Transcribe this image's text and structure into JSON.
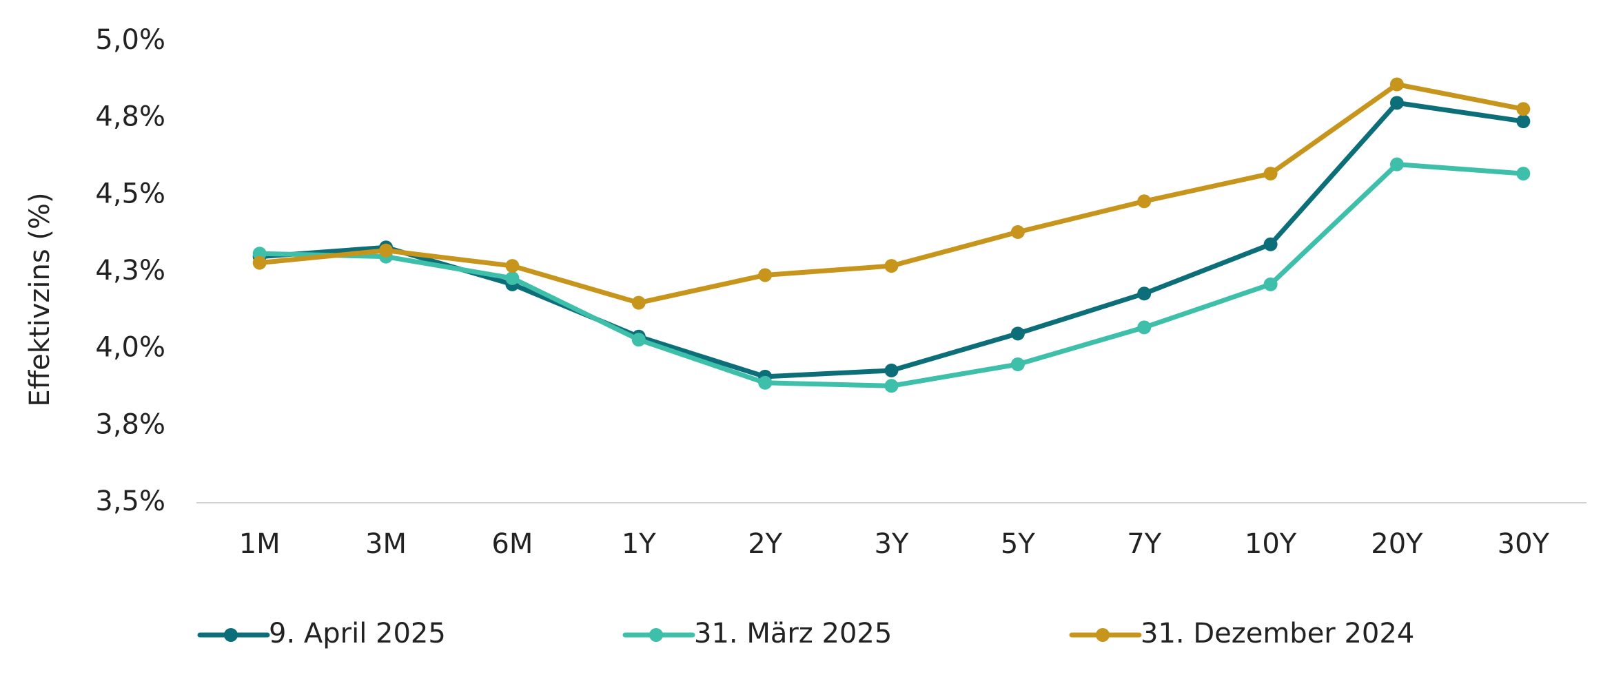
{
  "chart_data": {
    "type": "line",
    "y_label": "Effektivzins (%)",
    "categories": [
      "1M",
      "3M",
      "6M",
      "1Y",
      "2Y",
      "3Y",
      "5Y",
      "7Y",
      "10Y",
      "20Y",
      "30Y"
    ],
    "series": [
      {
        "name": "9. April 2025",
        "color": "#0b6e78",
        "values": [
          4.3,
          4.33,
          4.21,
          4.04,
          3.91,
          3.93,
          4.05,
          4.18,
          4.34,
          4.8,
          4.74
        ]
      },
      {
        "name": "31. März 2025",
        "color": "#3dbfaa",
        "values": [
          4.31,
          4.3,
          4.23,
          4.03,
          3.89,
          3.88,
          3.95,
          4.07,
          4.21,
          4.6,
          4.57
        ]
      },
      {
        "name": "31. Dezember 2024",
        "color": "#c7951c",
        "values": [
          4.28,
          4.32,
          4.27,
          4.15,
          4.24,
          4.27,
          4.38,
          4.48,
          4.57,
          4.86,
          4.78
        ]
      }
    ],
    "ylim": [
      3.5,
      5.0
    ],
    "yticks": [
      {
        "value": 3.5,
        "label": "3,5%"
      },
      {
        "value": 3.75,
        "label": "3,8%"
      },
      {
        "value": 4.0,
        "label": "4,0%"
      },
      {
        "value": 4.25,
        "label": "4,3%"
      },
      {
        "value": 4.5,
        "label": "4,5%"
      },
      {
        "value": 4.75,
        "label": "4,8%"
      },
      {
        "value": 5.0,
        "label": "5,0%"
      }
    ],
    "grid": false,
    "legend": "bottom"
  }
}
